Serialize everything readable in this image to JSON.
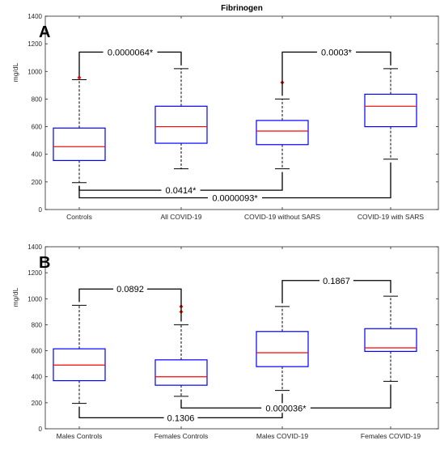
{
  "chart_data": [
    {
      "type": "box",
      "panel": "A",
      "title": "Fibrinogen",
      "ylabel": "mg/dL",
      "xlabel": "",
      "ylim": [
        0,
        1400
      ],
      "yticks": [
        0,
        200,
        400,
        600,
        800,
        1000,
        1200,
        1400
      ],
      "grid": false,
      "legend": "none",
      "categories": [
        "Controls",
        "All COVID-19",
        "COVID-19 without SARS",
        "COVID-19 with SARS"
      ],
      "boxes": [
        {
          "whisker_low": 195,
          "q1": 355,
          "median": 455,
          "q3": 590,
          "whisker_high": 940,
          "outliers": [
            955
          ]
        },
        {
          "whisker_low": 295,
          "q1": 480,
          "median": 600,
          "q3": 748,
          "whisker_high": 1020,
          "outliers": []
        },
        {
          "whisker_low": 295,
          "q1": 470,
          "median": 568,
          "q3": 645,
          "whisker_high": 800,
          "outliers": [
            920
          ]
        },
        {
          "whisker_low": 365,
          "q1": 600,
          "median": 748,
          "q3": 835,
          "whisker_high": 1020,
          "outliers": []
        }
      ],
      "comparisons": [
        {
          "from": 0,
          "to": 1,
          "level": 1140,
          "label": "0.0000064*",
          "side": "top"
        },
        {
          "from": 2,
          "to": 3,
          "level": 1140,
          "label": "0.0003*",
          "side": "top"
        },
        {
          "from": 0,
          "to": 2,
          "level": 140,
          "label": "0.0414*",
          "side": "bottom"
        },
        {
          "from": 0,
          "to": 3,
          "level": 85,
          "label": "0.0000093*",
          "side": "bottom"
        }
      ]
    },
    {
      "type": "box",
      "panel": "B",
      "title": "",
      "ylabel": "mg/dL",
      "xlabel": "",
      "ylim": [
        0,
        1400
      ],
      "yticks": [
        0,
        200,
        400,
        600,
        800,
        1000,
        1200,
        1400
      ],
      "grid": false,
      "legend": "none",
      "categories": [
        "Males Controls",
        "Females Controls",
        "Males  COVID-19",
        "Females COVID-19"
      ],
      "boxes": [
        {
          "whisker_low": 195,
          "q1": 370,
          "median": 490,
          "q3": 615,
          "whisker_high": 950,
          "outliers": []
        },
        {
          "whisker_low": 250,
          "q1": 335,
          "median": 400,
          "q3": 530,
          "whisker_high": 800,
          "outliers": [
            900,
            940
          ]
        },
        {
          "whisker_low": 295,
          "q1": 478,
          "median": 585,
          "q3": 748,
          "whisker_high": 940,
          "outliers": []
        },
        {
          "whisker_low": 365,
          "q1": 595,
          "median": 622,
          "q3": 770,
          "whisker_high": 1020,
          "outliers": []
        }
      ],
      "comparisons": [
        {
          "from": 0,
          "to": 1,
          "level": 1075,
          "label": "0.0892",
          "side": "top"
        },
        {
          "from": 2,
          "to": 3,
          "level": 1140,
          "label": "0.1867",
          "side": "top"
        },
        {
          "from": 0,
          "to": 2,
          "level": 85,
          "label": "0.1306",
          "side": "bottom"
        },
        {
          "from": 1,
          "to": 3,
          "level": 160,
          "label": "0.000036*",
          "side": "bottom"
        }
      ]
    }
  ],
  "colors": {
    "box": "#0000ff",
    "median": "#ff0000",
    "outlier": "#ff0000",
    "whisker": "#000000",
    "axis": "#262626"
  }
}
